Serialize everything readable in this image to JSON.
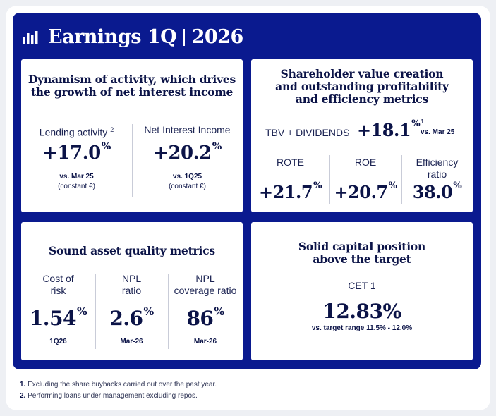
{
  "header": {
    "title": "Earnings 1Q",
    "year": "2026",
    "logo_icon": "bar-chart-icon"
  },
  "colors": {
    "frame": "#0a1a8f",
    "card": "#ffffff",
    "text": "#0b1347"
  },
  "card1": {
    "title_line1": "Dynamism of activity, which drives",
    "title_line2": "the growth of net interest income",
    "m1": {
      "label": "Lending activity",
      "label_sup": "2",
      "value": "+17.0",
      "unit": "%",
      "sub1": "vs. Mar 25",
      "sub2": "(constant €)"
    },
    "m2": {
      "label": "Net Interest Income",
      "value": "+20.2",
      "unit": "%",
      "sub1": "vs. 1Q25",
      "sub2": "(constant €)"
    }
  },
  "card2": {
    "title_line1": "Shareholder value creation",
    "title_line2": "and outstanding profitability",
    "title_line3": "and efficiency metrics",
    "tbv": {
      "label": "TBV + DIVIDENDS",
      "value": "+18.1",
      "unit": "%",
      "sup": "1",
      "note": "vs. Mar 25"
    },
    "rote": {
      "label": "ROTE",
      "value": "+21.7",
      "unit": "%"
    },
    "roe": {
      "label": "ROE",
      "value": "+20.7",
      "unit": "%"
    },
    "eff": {
      "label_line1": "Efficiency",
      "label_line2": "ratio",
      "value": "38.0",
      "unit": "%"
    }
  },
  "card3": {
    "title": "Sound asset quality metrics",
    "m1": {
      "label_line1": "Cost of",
      "label_line2": "risk",
      "value": "1.54",
      "unit": "%",
      "sub": "1Q26"
    },
    "m2": {
      "label_line1": "NPL",
      "label_line2": "ratio",
      "value": "2.6",
      "unit": "%",
      "sub": "Mar-26"
    },
    "m3": {
      "label_line1": "NPL",
      "label_line2": "coverage ratio",
      "value": "86",
      "unit": "%",
      "sub": "Mar-26"
    }
  },
  "card4": {
    "title_line1": "Solid capital position",
    "title_line2": "above the target",
    "cet": {
      "label": "CET 1",
      "value": "12.83%",
      "sub": "vs. target range 11.5% - 12.0%"
    }
  },
  "footnotes": [
    {
      "num": "1.",
      "text": "Excluding the share buybacks carried out over the past year."
    },
    {
      "num": "2.",
      "text": "Performing loans under management excluding repos."
    }
  ]
}
